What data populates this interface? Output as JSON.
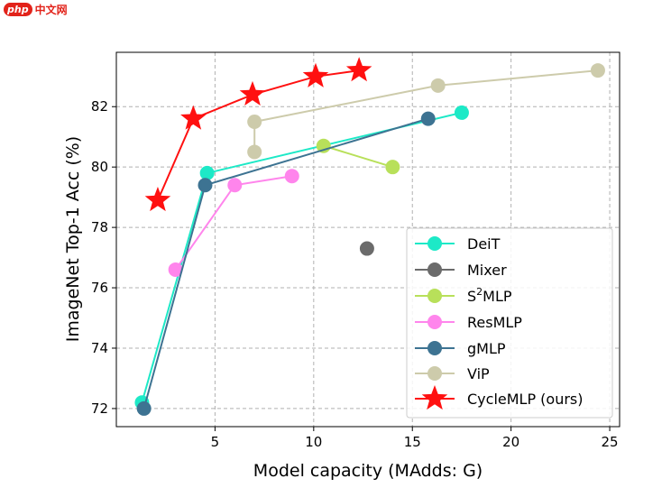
{
  "watermark": {
    "logo": "php",
    "text": "中文网"
  },
  "chart_data": {
    "type": "line",
    "xlabel": "Model capacity (MAdds: G)",
    "ylabel": "ImageNet Top-1 Acc (%)",
    "xlim": [
      0,
      25.5
    ],
    "ylim": [
      71.4,
      83.8
    ],
    "xticks": [
      5,
      10,
      15,
      20,
      25
    ],
    "yticks": [
      72,
      74,
      76,
      78,
      80,
      82
    ],
    "grid": true,
    "legend": "lower-right",
    "series": [
      {
        "name": "DeiT",
        "color": "#1de9c7",
        "marker": "circle",
        "points": [
          [
            1.3,
            72.2
          ],
          [
            4.6,
            79.8
          ],
          [
            17.5,
            81.8
          ]
        ]
      },
      {
        "name": "Mixer",
        "color": "#6b6b6b",
        "marker": "circle",
        "points": [
          [
            12.7,
            77.3
          ]
        ]
      },
      {
        "name": "S2MLP",
        "color": "#b8e05a",
        "marker": "circle",
        "points": [
          [
            10.5,
            80.7
          ],
          [
            14.0,
            80.0
          ]
        ]
      },
      {
        "name": "ResMLP",
        "color": "#ff85ec",
        "marker": "circle",
        "points": [
          [
            3.0,
            76.6
          ],
          [
            6.0,
            79.4
          ],
          [
            8.9,
            79.7
          ]
        ]
      },
      {
        "name": "gMLP",
        "color": "#3d7392",
        "marker": "circle",
        "points": [
          [
            1.4,
            72.0
          ],
          [
            4.5,
            79.4
          ],
          [
            15.8,
            81.6
          ]
        ]
      },
      {
        "name": "ViP",
        "color": "#cdcbab",
        "marker": "circle",
        "points": [
          [
            7.0,
            80.5
          ],
          [
            7.0,
            81.5
          ],
          [
            16.3,
            82.7
          ],
          [
            24.4,
            83.2
          ]
        ]
      },
      {
        "name": "CycleMLP (ours)",
        "color": "#ff1010",
        "marker": "star",
        "points": [
          [
            2.1,
            78.9
          ],
          [
            3.9,
            81.6
          ],
          [
            6.9,
            82.4
          ],
          [
            10.1,
            83.0
          ],
          [
            12.3,
            83.2
          ]
        ]
      }
    ],
    "legend_labels": {
      "DeiT": "DeiT",
      "Mixer": "Mixer",
      "S2MLP_base": "S",
      "S2MLP_sup": "2",
      "S2MLP_rest": "MLP",
      "ResMLP": "ResMLP",
      "gMLP": "gMLP",
      "ViP": "ViP",
      "CycleMLP": "CycleMLP (ours)"
    }
  }
}
